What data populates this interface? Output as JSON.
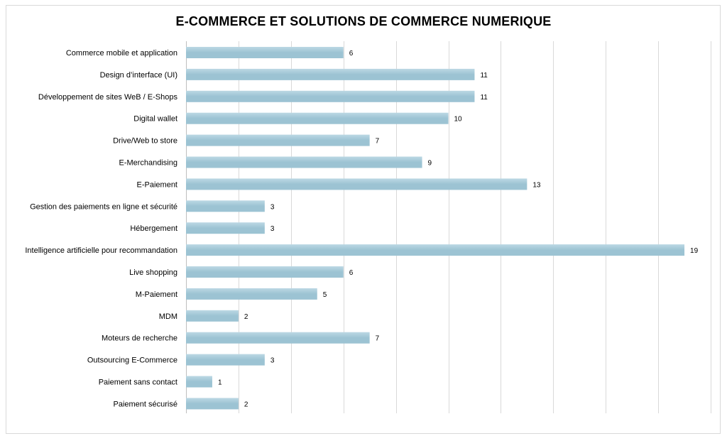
{
  "chart_data": {
    "type": "bar",
    "orientation": "horizontal",
    "title": "E-COMMERCE ET SOLUTIONS DE COMMERCE NUMERIQUE",
    "xlabel": "",
    "ylabel": "",
    "xlim": [
      0,
      20
    ],
    "grid": true,
    "categories": [
      "Commerce mobile et application",
      "Design d’interface (UI)",
      "Développement de sites WeB / E-Shops",
      "Digital wallet",
      "Drive/Web to store",
      "E-Merchandising",
      "E-Paiement",
      "Gestion des paiements en ligne et sécurité",
      "Hébergement",
      "Intelligence artificielle pour recommandation",
      "Live shopping",
      "M-Paiement",
      "MDM",
      "Moteurs de recherche",
      "Outsourcing E-Commerce",
      "Paiement sans contact",
      "Paiement sécurisé"
    ],
    "values": [
      6,
      11,
      11,
      10,
      7,
      9,
      13,
      3,
      3,
      19,
      6,
      5,
      2,
      7,
      3,
      1,
      2
    ],
    "bar_color": "#9cc3d3",
    "bar_color_light": "#bcd8e4"
  }
}
